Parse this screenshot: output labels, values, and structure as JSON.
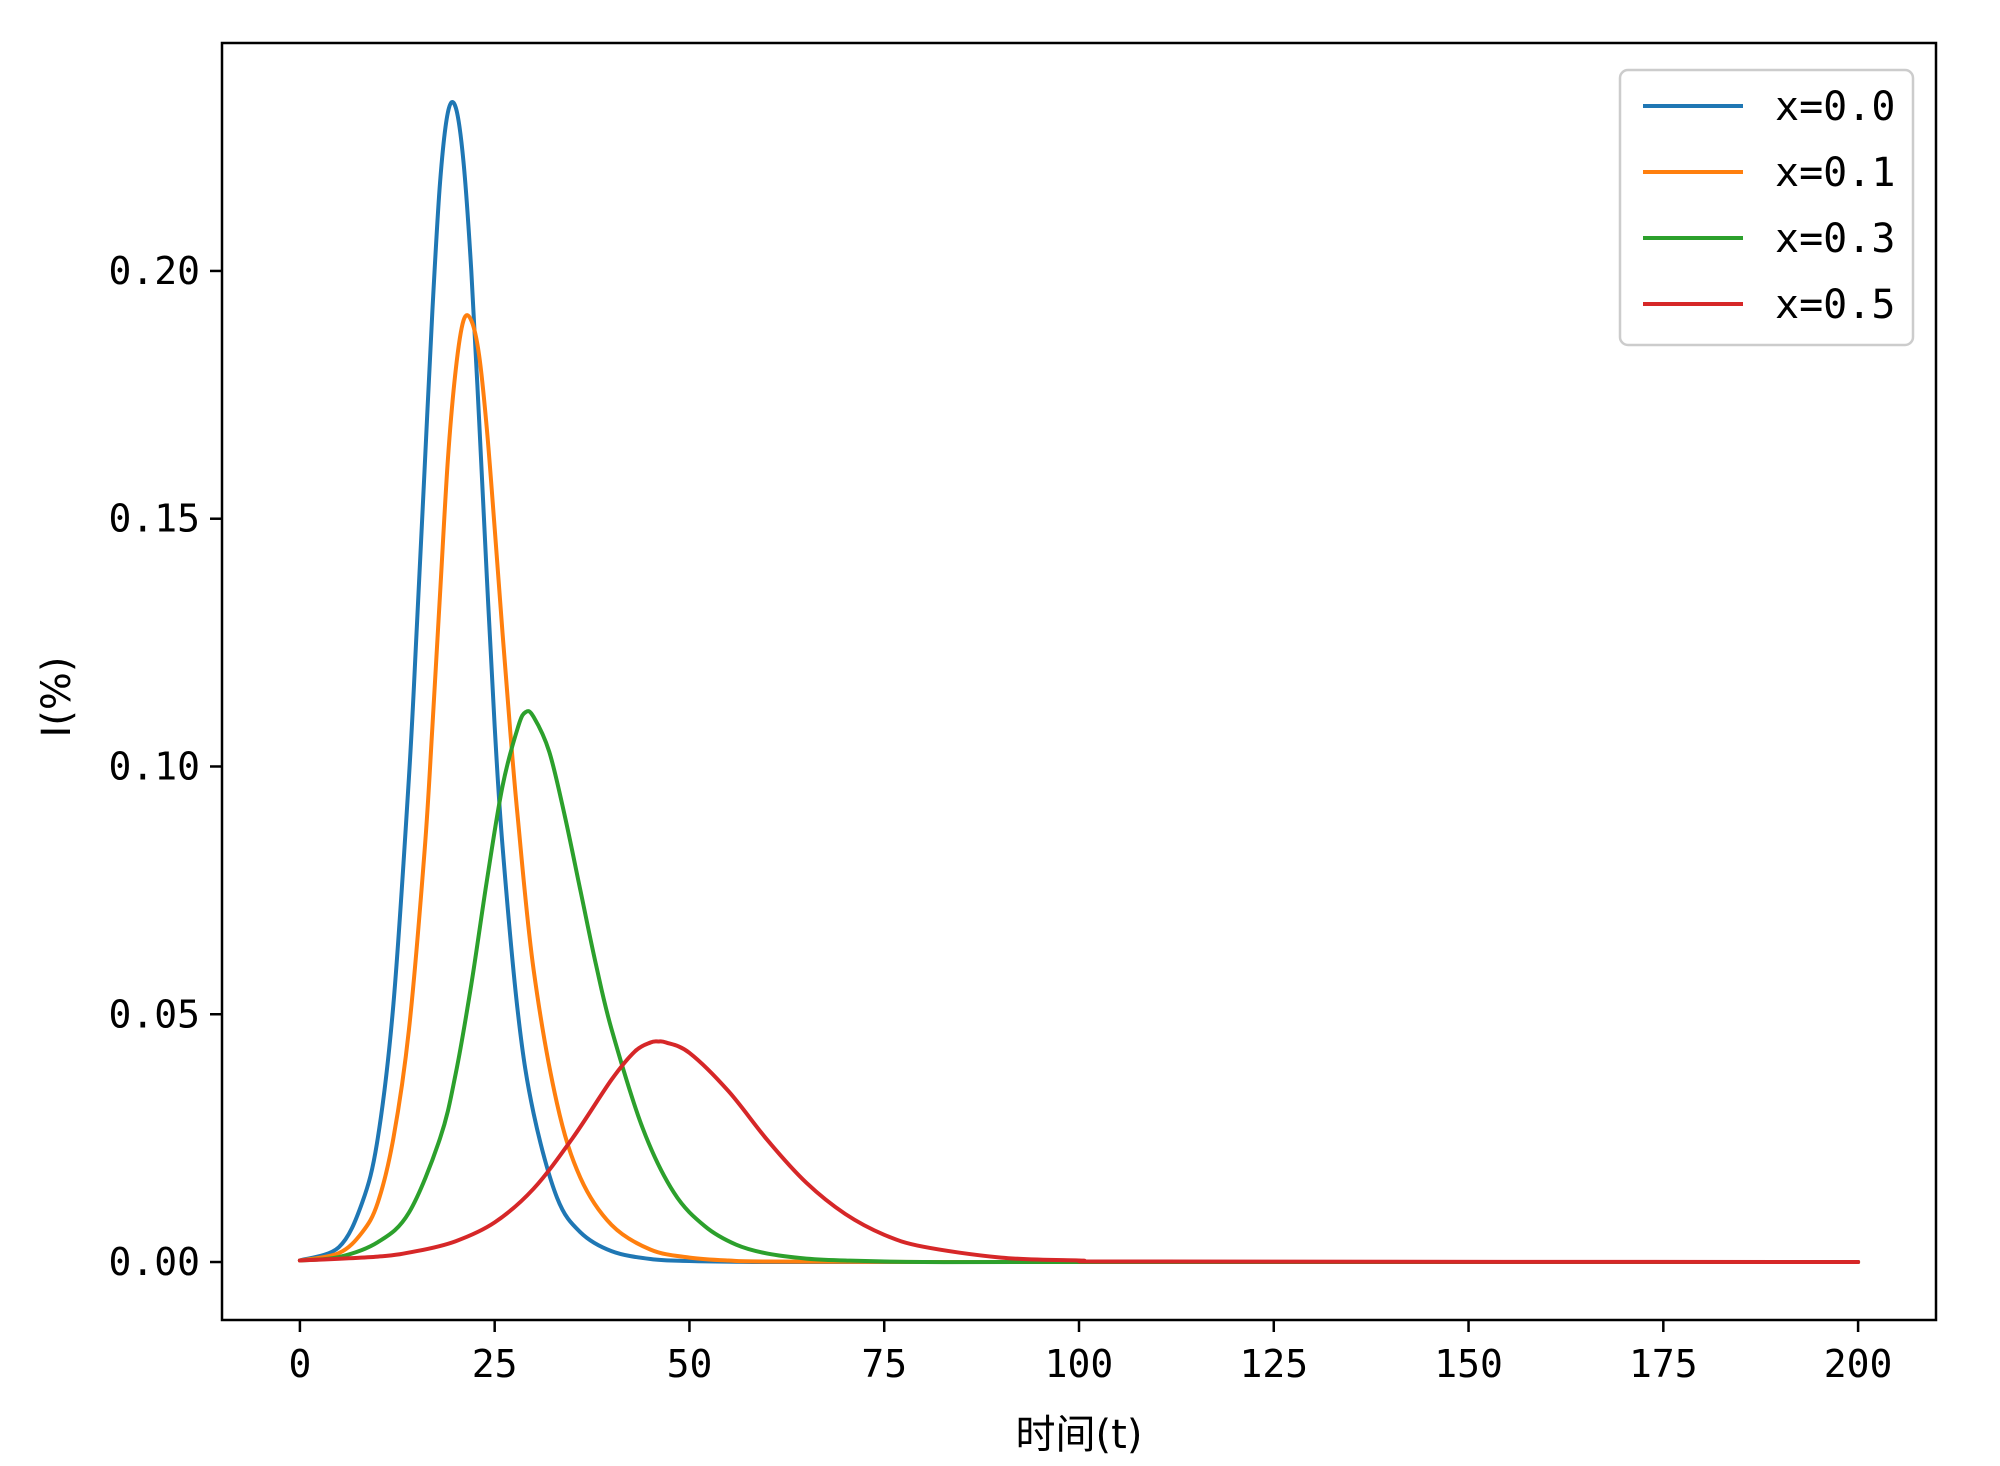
{
  "chart_data": {
    "type": "line",
    "title": "",
    "xlabel": "时间(t)",
    "ylabel": "I(%)",
    "xlim": [
      -10,
      210
    ],
    "ylim": [
      -0.0117,
      0.246
    ],
    "xticks": [
      0,
      25,
      50,
      75,
      100,
      125,
      150,
      175,
      200
    ],
    "xtick_labels": [
      "0",
      "25",
      "50",
      "75",
      "100",
      "125",
      "150",
      "175",
      "200"
    ],
    "yticks": [
      0.0,
      0.05,
      0.1,
      0.15,
      0.2
    ],
    "ytick_labels": [
      "0.00",
      "0.05",
      "0.10",
      "0.15",
      "0.20"
    ],
    "grid": false,
    "legend_position": "top-right",
    "series": [
      {
        "name": "x=0.0",
        "color": "#1f77b4",
        "x": [
          0,
          5,
          8,
          10,
          12,
          14,
          15,
          16,
          17,
          18,
          19,
          20,
          21,
          22,
          23,
          24,
          25,
          26,
          28,
          30,
          33,
          36,
          40,
          45,
          50,
          60,
          80,
          120,
          200
        ],
        "y": [
          0.0003,
          0.003,
          0.012,
          0.025,
          0.052,
          0.098,
          0.128,
          0.16,
          0.192,
          0.218,
          0.232,
          0.233,
          0.222,
          0.2,
          0.17,
          0.138,
          0.108,
          0.084,
          0.05,
          0.03,
          0.013,
          0.006,
          0.0022,
          0.0006,
          0.0002,
          0.0,
          0.0,
          0.0,
          0.0
        ]
      },
      {
        "name": "x=0.1",
        "color": "#ff7f0e",
        "x": [
          0,
          5,
          8,
          10,
          12,
          14,
          16,
          17,
          18,
          19,
          20,
          21,
          22,
          23,
          24,
          25,
          26,
          27,
          28,
          30,
          33,
          36,
          40,
          45,
          50,
          55,
          60,
          80,
          120,
          200
        ],
        "y": [
          0.0003,
          0.0018,
          0.006,
          0.012,
          0.025,
          0.047,
          0.083,
          0.108,
          0.135,
          0.162,
          0.18,
          0.19,
          0.19,
          0.183,
          0.168,
          0.148,
          0.127,
          0.107,
          0.089,
          0.059,
          0.032,
          0.017,
          0.0075,
          0.0025,
          0.0009,
          0.0003,
          0.0001,
          0.0,
          0.0,
          0.0
        ]
      },
      {
        "name": "x=0.3",
        "color": "#2ca02c",
        "x": [
          0,
          5,
          10,
          14,
          18,
          20,
          22,
          24,
          26,
          28,
          29,
          30,
          32,
          34,
          36,
          38,
          40,
          44,
          48,
          52,
          56,
          60,
          65,
          70,
          80,
          100,
          200
        ],
        "y": [
          0.0003,
          0.001,
          0.004,
          0.01,
          0.025,
          0.038,
          0.056,
          0.077,
          0.096,
          0.108,
          0.111,
          0.11,
          0.103,
          0.09,
          0.075,
          0.06,
          0.047,
          0.027,
          0.014,
          0.0072,
          0.0035,
          0.0017,
          0.0007,
          0.0003,
          0.0,
          0.0,
          0.0
        ]
      },
      {
        "name": "x=0.5",
        "color": "#d62728",
        "x": [
          0,
          10,
          15,
          20,
          25,
          30,
          35,
          40,
          43,
          45,
          46,
          47,
          50,
          55,
          60,
          65,
          70,
          75,
          80,
          90,
          100,
          110,
          200
        ],
        "y": [
          0.0003,
          0.0011,
          0.0022,
          0.0042,
          0.008,
          0.0148,
          0.025,
          0.0368,
          0.0425,
          0.0443,
          0.0445,
          0.0443,
          0.0422,
          0.0345,
          0.0246,
          0.016,
          0.0097,
          0.0055,
          0.0031,
          0.0009,
          0.0003,
          0.0001,
          0.0
        ]
      }
    ]
  }
}
